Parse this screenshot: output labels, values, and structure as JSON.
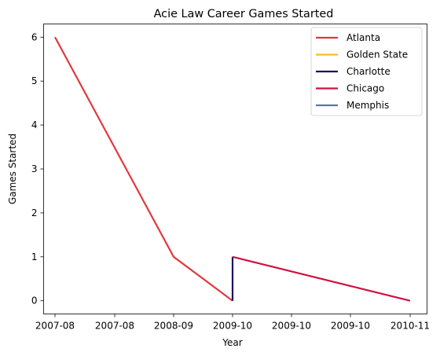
{
  "chart_data": {
    "type": "line",
    "title": "Acie Law Career Games Started",
    "xlabel": "Year",
    "ylabel": "Games Started",
    "x_ticks": [
      "2007-08",
      "2007-08",
      "2008-09",
      "2009-10",
      "2009-10",
      "2009-10",
      "2010-11"
    ],
    "y_ticks": [
      "0",
      "1",
      "2",
      "3",
      "4",
      "5",
      "6"
    ],
    "ylim": [
      -0.3,
      6.3
    ],
    "grid": false,
    "legend_position": "top-right",
    "series": [
      {
        "name": "Atlanta",
        "color": "#e03a3e",
        "x": [
          "2007-08",
          "2008-09",
          "2009-10"
        ],
        "values": [
          6,
          1,
          0
        ]
      },
      {
        "name": "Golden State",
        "color": "#fdb927",
        "x": [
          "2009-10"
        ],
        "values": [
          0
        ]
      },
      {
        "name": "Charlotte",
        "color": "#1d1160",
        "x": [
          "2009-10",
          "2009-10"
        ],
        "values": [
          0,
          1
        ]
      },
      {
        "name": "Chicago",
        "color": "#ce1141",
        "x": [
          "2009-10",
          "2010-11"
        ],
        "values": [
          1,
          0
        ]
      },
      {
        "name": "Memphis",
        "color": "#5d76a9",
        "x": [
          "2010-11"
        ],
        "values": [
          0
        ]
      }
    ]
  }
}
